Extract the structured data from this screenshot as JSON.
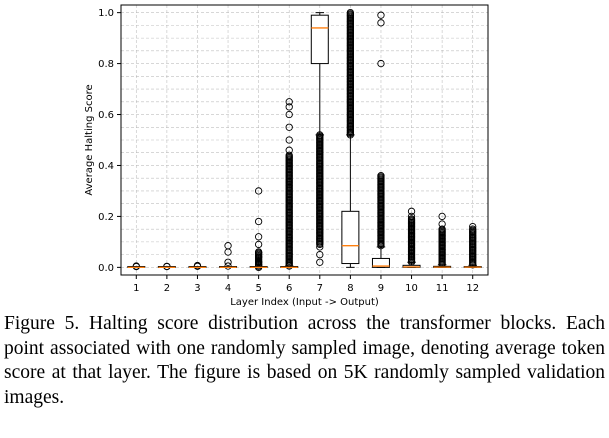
{
  "chart_data": {
    "type": "box",
    "title": "",
    "xlabel": "Layer Index (Input -> Output)",
    "ylabel": "Average Halting Score",
    "ylim": [
      -0.03,
      1.03
    ],
    "yticks": [
      "0.0",
      "0.2",
      "0.4",
      "0.6",
      "0.8",
      "1.0"
    ],
    "grid": true,
    "categories": [
      "1",
      "2",
      "3",
      "4",
      "5",
      "6",
      "7",
      "8",
      "9",
      "10",
      "11",
      "12"
    ],
    "boxes": [
      {
        "layer": "1",
        "whislo": 0.0,
        "q1": 0.0,
        "med": 0.0,
        "q3": 0.0,
        "whishi": 0.0,
        "fliers": [
          0.003,
          0.005
        ]
      },
      {
        "layer": "2",
        "whislo": 0.0,
        "q1": 0.0,
        "med": 0.0,
        "q3": 0.0,
        "whishi": 0.0,
        "fliers": [
          0.003,
          0.004
        ]
      },
      {
        "layer": "3",
        "whislo": 0.0,
        "q1": 0.0,
        "med": 0.0,
        "q3": 0.0,
        "whishi": 0.0,
        "fliers": [
          0.004,
          0.007
        ]
      },
      {
        "layer": "4",
        "whislo": 0.0,
        "q1": 0.0,
        "med": 0.0,
        "q3": 0.0,
        "whishi": 0.0,
        "fliers": [
          0.005,
          0.02,
          0.06,
          0.085
        ]
      },
      {
        "layer": "5",
        "whislo": 0.0,
        "q1": 0.0,
        "med": 0.0,
        "q3": 0.0,
        "whishi": 0.0,
        "fliers": [
          0.01,
          0.02,
          0.04,
          0.06,
          0.09,
          0.12,
          0.18,
          0.3
        ],
        "dense_range": [
          0.0,
          0.06
        ]
      },
      {
        "layer": "6",
        "whislo": 0.0,
        "q1": 0.0,
        "med": 0.0,
        "q3": 0.003,
        "whishi": 0.005,
        "fliers": [
          0.46,
          0.5,
          0.55,
          0.6,
          0.63,
          0.65
        ],
        "dense_range": [
          0.005,
          0.44
        ]
      },
      {
        "layer": "7",
        "whislo": 0.52,
        "q1": 0.8,
        "med": 0.94,
        "q3": 0.99,
        "whishi": 1.0,
        "fliers": [
          0.02,
          0.05,
          0.08
        ],
        "dense_range": [
          0.09,
          0.52
        ]
      },
      {
        "layer": "8",
        "whislo": 0.0,
        "q1": 0.015,
        "med": 0.085,
        "q3": 0.22,
        "whishi": 0.52,
        "fliers": [],
        "dense_range": [
          0.52,
          1.0
        ]
      },
      {
        "layer": "9",
        "whislo": 0.0,
        "q1": 0.0,
        "med": 0.005,
        "q3": 0.035,
        "whishi": 0.08,
        "fliers": [
          0.8,
          0.96,
          0.99
        ],
        "dense_range": [
          0.085,
          0.36
        ]
      },
      {
        "layer": "10",
        "whislo": 0.0,
        "q1": 0.0,
        "med": 0.002,
        "q3": 0.008,
        "whishi": 0.02,
        "fliers": [
          0.2,
          0.22
        ],
        "dense_range": [
          0.02,
          0.19
        ]
      },
      {
        "layer": "11",
        "whislo": 0.0,
        "q1": 0.0,
        "med": 0.001,
        "q3": 0.004,
        "whishi": 0.01,
        "fliers": [
          0.17,
          0.2
        ],
        "dense_range": [
          0.012,
          0.15
        ]
      },
      {
        "layer": "12",
        "whislo": 0.0,
        "q1": 0.0,
        "med": 0.001,
        "q3": 0.003,
        "whishi": 0.008,
        "fliers": [
          0.16
        ],
        "dense_range": [
          0.01,
          0.15
        ]
      }
    ]
  },
  "caption": "Figure 5. Halting score distribution across the transformer blocks. Each point associated with one randomly sampled image, denoting average token score at that layer. The figure is based on 5K randomly sampled validation images.",
  "colors": {
    "box": "#000000",
    "median": "#ff7f0e",
    "grid": "#b0b0b0"
  }
}
